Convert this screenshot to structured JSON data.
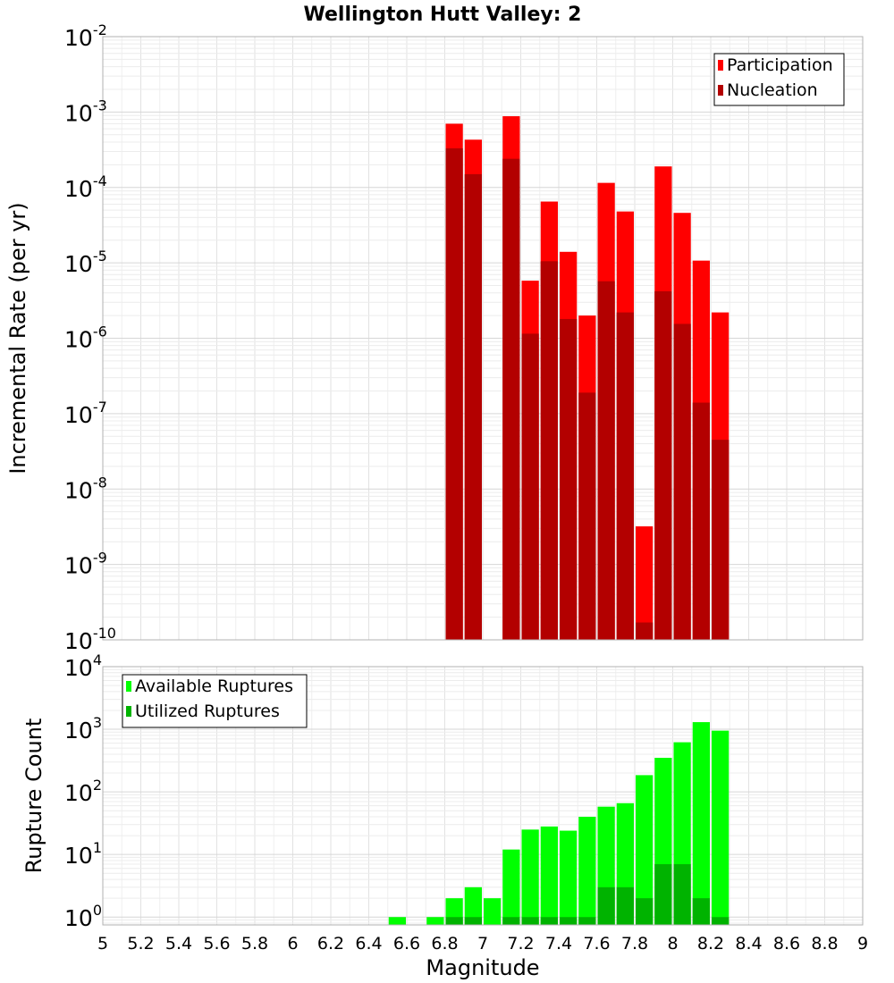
{
  "title": "Wellington Hutt Valley: 2",
  "xlabel": "Magnitude",
  "x_ticks": [
    "5",
    "5.2",
    "5.4",
    "5.6",
    "5.8",
    "6",
    "6.2",
    "6.4",
    "6.6",
    "6.8",
    "7",
    "7.2",
    "7.4",
    "7.6",
    "7.8",
    "8",
    "8.2",
    "8.4",
    "8.6",
    "8.8",
    "9"
  ],
  "chart_data": [
    {
      "type": "bar",
      "ylabel": "Incremental Rate (per yr)",
      "yscale": "log",
      "ylim": [
        1e-10,
        0.01
      ],
      "xlim": [
        5,
        9
      ],
      "grid": true,
      "legend_position": "top-right",
      "y_ticks": [
        {
          "base": "10",
          "exp": "-10"
        },
        {
          "base": "10",
          "exp": "-9"
        },
        {
          "base": "10",
          "exp": "-8"
        },
        {
          "base": "10",
          "exp": "-7"
        },
        {
          "base": "10",
          "exp": "-6"
        },
        {
          "base": "10",
          "exp": "-5"
        },
        {
          "base": "10",
          "exp": "-4"
        },
        {
          "base": "10",
          "exp": "-3"
        },
        {
          "base": "10",
          "exp": "-2"
        }
      ],
      "bin_width": 0.1,
      "x": [
        6.85,
        6.95,
        7.15,
        7.25,
        7.35,
        7.45,
        7.55,
        7.65,
        7.75,
        7.85,
        7.95,
        8.05,
        8.15,
        8.25
      ],
      "series": [
        {
          "name": "Participation",
          "color": "#ff0000",
          "values": [
            0.0007,
            0.00043,
            0.00088,
            5.8e-06,
            6.5e-05,
            1.4e-05,
            2e-06,
            0.000115,
            4.8e-05,
            3.2e-09,
            0.00019,
            4.6e-05,
            1.07e-05,
            2.2e-06
          ]
        },
        {
          "name": "Nucleation",
          "color": "#b30000",
          "values": [
            0.00033,
            0.00015,
            0.00024,
            1.15e-06,
            1.05e-05,
            1.8e-06,
            1.9e-07,
            5.7e-06,
            2.2e-06,
            1.7e-10,
            4.2e-06,
            1.55e-06,
            1.4e-07,
            4.5e-08
          ]
        }
      ]
    },
    {
      "type": "bar",
      "ylabel": "Rupture Count",
      "yscale": "log",
      "ylim": [
        0.75,
        10000
      ],
      "xlim": [
        5,
        9
      ],
      "grid": true,
      "legend_position": "top-left",
      "y_ticks": [
        {
          "base": "10",
          "exp": "0"
        },
        {
          "base": "10",
          "exp": "1"
        },
        {
          "base": "10",
          "exp": "2"
        },
        {
          "base": "10",
          "exp": "3"
        },
        {
          "base": "10",
          "exp": "4"
        }
      ],
      "bin_width": 0.1,
      "x": [
        6.55,
        6.75,
        6.85,
        6.95,
        7.05,
        7.15,
        7.25,
        7.35,
        7.45,
        7.55,
        7.65,
        7.75,
        7.85,
        7.95,
        8.05,
        8.15,
        8.25
      ],
      "series": [
        {
          "name": "Available Ruptures",
          "color": "#00ff00",
          "values": [
            1,
            1,
            2,
            3,
            2,
            12,
            25,
            28,
            24,
            40,
            58,
            66,
            185,
            350,
            620,
            1300,
            950
          ]
        },
        {
          "name": "Utilized Ruptures",
          "color": "#00b300",
          "values": [
            null,
            null,
            1,
            1,
            null,
            1,
            1,
            1,
            1,
            1,
            3,
            3,
            2,
            7,
            7,
            2,
            1
          ]
        }
      ]
    }
  ]
}
